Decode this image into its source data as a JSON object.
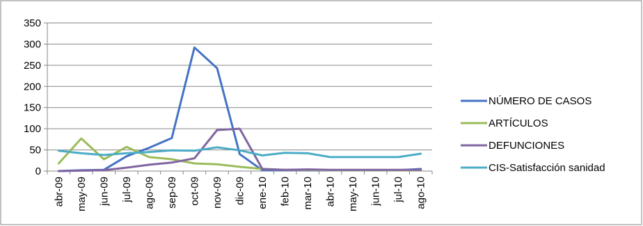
{
  "chart_data": {
    "type": "line",
    "title": "",
    "xlabel": "",
    "ylabel": "",
    "ylim": [
      0,
      350
    ],
    "yticks": [
      0,
      50,
      100,
      150,
      200,
      250,
      300,
      350
    ],
    "grid": true,
    "legend": "right",
    "categories": [
      "abr-09",
      "may-09",
      "jun-09",
      "jul-09",
      "ago-09",
      "sep-09",
      "oct-09",
      "nov-09",
      "dic-09",
      "ene-10",
      "feb-10",
      "mar-10",
      "abr-10",
      "may-10",
      "jun-10",
      "jul-10",
      "ago-10"
    ],
    "series": [
      {
        "name": "NÚMERO DE CASOS",
        "color": "#4472c4",
        "values": [
          0,
          2,
          3,
          35,
          55,
          78,
          292,
          243,
          40,
          2,
          2,
          2,
          2,
          2,
          2,
          2,
          5
        ]
      },
      {
        "name": "ARTÍCULOS",
        "color": "#9bbb59",
        "values": [
          18,
          77,
          28,
          57,
          33,
          28,
          18,
          16,
          10,
          5,
          3,
          3,
          2,
          2,
          2,
          2,
          2
        ]
      },
      {
        "name": "DEFUNCIONES",
        "color": "#8064a2",
        "values": [
          0,
          1,
          2,
          8,
          15,
          20,
          30,
          97,
          100,
          5,
          3,
          4,
          3,
          3,
          3,
          3,
          3
        ]
      },
      {
        "name": "CIS-Satisfacción sanidad",
        "color": "#4bacc6",
        "values": [
          48,
          42,
          38,
          42,
          45,
          49,
          48,
          56,
          49,
          37,
          43,
          42,
          33,
          33,
          33,
          33,
          41
        ]
      }
    ]
  }
}
